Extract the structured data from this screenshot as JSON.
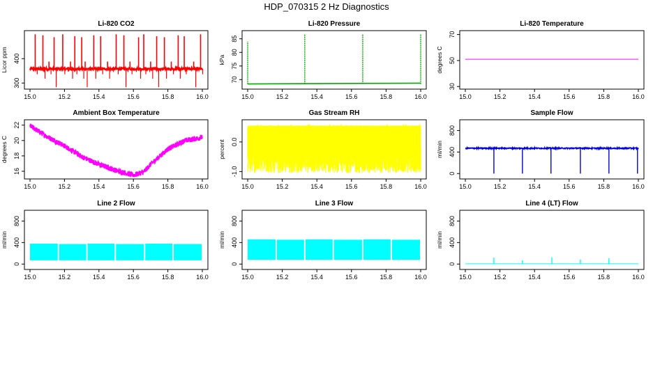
{
  "page_title": "HDP_070315  2 Hz Diagnostics",
  "chart_data": [
    {
      "type": "line",
      "title": "Li-820 CO2",
      "ylabel": "Licor ppm",
      "color": "#ff0000",
      "xlim": [
        15.0,
        16.0
      ],
      "ylim": [
        275,
        515
      ],
      "xticks": [
        "15.0",
        "15.2",
        "15.4",
        "15.6",
        "15.8",
        "16.0"
      ],
      "yticks": [
        {
          "v": 300,
          "label": "300"
        },
        {
          "v": 400,
          "label": "400"
        }
      ],
      "series": {
        "pattern": "co2",
        "baseline": 358,
        "spike_high": 500,
        "spikes_x": [
          15.03,
          15.075,
          15.11,
          15.14,
          15.19,
          15.235,
          15.26,
          15.3,
          15.32,
          15.37,
          15.41,
          15.45,
          15.5,
          15.545,
          15.58,
          15.63,
          15.66,
          15.7,
          15.735,
          15.78,
          15.82,
          15.86,
          15.895,
          15.95,
          15.99
        ]
      }
    },
    {
      "type": "line",
      "title": "Li-820 Pressure",
      "ylabel": "kPa",
      "color": "#00aa00",
      "xlim": [
        15.0,
        16.0
      ],
      "ylim": [
        66.5,
        88.0
      ],
      "xticks": [
        "15.0",
        "15.2",
        "15.4",
        "15.6",
        "15.8",
        "16.0"
      ],
      "yticks": [
        {
          "v": 70,
          "label": "70"
        },
        {
          "v": 75,
          "label": "75"
        },
        {
          "v": 80,
          "label": "80"
        },
        {
          "v": 85,
          "label": "85"
        }
      ],
      "series": {
        "pattern": "pressure",
        "baseline": 68.4,
        "spike_high": 86.8,
        "spikes_x": [
          15.0,
          15.33,
          15.665,
          16.0
        ]
      }
    },
    {
      "type": "line",
      "title": "Li-820 Temperature",
      "ylabel": "degrees C",
      "color": "#ff00ff",
      "xlim": [
        15.0,
        16.0
      ],
      "ylim": [
        28,
        73
      ],
      "xticks": [
        "15.0",
        "15.2",
        "15.4",
        "15.6",
        "15.8",
        "16.0"
      ],
      "yticks": [
        {
          "v": 30,
          "label": "30"
        },
        {
          "v": 50,
          "label": "50"
        },
        {
          "v": 70,
          "label": "70"
        }
      ],
      "series": {
        "pattern": "flat",
        "value": 51
      }
    },
    {
      "type": "line",
      "title": "Ambient Box Temperature",
      "ylabel": "degrees C",
      "color": "#ff00ff",
      "xlim": [
        15.0,
        16.0
      ],
      "ylim": [
        15.0,
        22.7
      ],
      "xticks": [
        "15.0",
        "15.2",
        "15.4",
        "15.6",
        "15.8",
        "16.0"
      ],
      "yticks": [
        {
          "v": 16,
          "label": "16"
        },
        {
          "v": 18,
          "label": "18"
        },
        {
          "v": 20,
          "label": "20"
        },
        {
          "v": 22,
          "label": "22"
        }
      ],
      "series": {
        "pattern": "temp_curve",
        "x": [
          15.0,
          15.1,
          15.2,
          15.3,
          15.4,
          15.5,
          15.6,
          15.66,
          15.7,
          15.8,
          15.9,
          16.0
        ],
        "y": [
          21.9,
          20.5,
          19.3,
          17.9,
          16.9,
          16.1,
          15.5,
          15.9,
          16.9,
          18.9,
          20.0,
          20.4
        ]
      }
    },
    {
      "type": "line",
      "title": "Gas Stream RH",
      "ylabel": "percent",
      "color": "#ffff00",
      "xlim": [
        15.0,
        16.0
      ],
      "ylim": [
        -1.25,
        0.75
      ],
      "xticks": [
        "15.0",
        "15.2",
        "15.4",
        "15.6",
        "15.8",
        "16.0"
      ],
      "yticks": [
        {
          "v": -1.0,
          "label": "-1.0"
        },
        {
          "v": 0.0,
          "label": "0.0"
        }
      ],
      "series": {
        "pattern": "noise",
        "low": -1.05,
        "high": 0.6
      }
    },
    {
      "type": "line",
      "title": "Sample Flow",
      "ylabel": "ml/min",
      "color": "#0000dd",
      "xlim": [
        15.0,
        16.0
      ],
      "ylim": [
        -100,
        1000
      ],
      "xticks": [
        "15.0",
        "15.2",
        "15.4",
        "15.6",
        "15.8",
        "16.0"
      ],
      "yticks": [
        {
          "v": 0,
          "label": "0"
        },
        {
          "v": 400,
          "label": "400"
        },
        {
          "v": 800,
          "label": "800"
        }
      ],
      "series": {
        "pattern": "dips",
        "baseline": 470,
        "dip_low": 0,
        "dips_x": [
          15.165,
          15.33,
          15.495,
          15.665,
          15.83,
          15.995
        ]
      }
    },
    {
      "type": "line",
      "title": "Line 2 Flow",
      "ylabel": "ml/min",
      "color": "#00ffff",
      "xlim": [
        15.0,
        16.0
      ],
      "ylim": [
        -100,
        1000
      ],
      "xticks": [
        "15.0",
        "15.2",
        "15.4",
        "15.6",
        "15.8",
        "16.0"
      ],
      "yticks": [
        {
          "v": 0,
          "label": "0"
        },
        {
          "v": 400,
          "label": "400"
        },
        {
          "v": 800,
          "label": "800"
        }
      ],
      "series": {
        "pattern": "band",
        "low": 70,
        "high": 380,
        "gaps_x": [
          15.165,
          15.33,
          15.495,
          15.665,
          15.83
        ]
      }
    },
    {
      "type": "line",
      "title": "Line 3 Flow",
      "ylabel": "ml/min",
      "color": "#00ffff",
      "xlim": [
        15.0,
        16.0
      ],
      "ylim": [
        -100,
        1000
      ],
      "xticks": [
        "15.0",
        "15.2",
        "15.4",
        "15.6",
        "15.8",
        "16.0"
      ],
      "yticks": [
        {
          "v": 0,
          "label": "0"
        },
        {
          "v": 400,
          "label": "400"
        },
        {
          "v": 800,
          "label": "800"
        }
      ],
      "series": {
        "pattern": "band",
        "low": 80,
        "high": 460,
        "gaps_x": [
          15.165,
          15.33,
          15.495,
          15.665,
          15.83
        ]
      }
    },
    {
      "type": "line",
      "title": "Line 4 (LT) Flow",
      "ylabel": "ml/min",
      "color": "#00ffff",
      "xlim": [
        15.0,
        16.0
      ],
      "ylim": [
        -100,
        1000
      ],
      "xticks": [
        "15.0",
        "15.2",
        "15.4",
        "15.6",
        "15.8",
        "16.0"
      ],
      "yticks": [
        {
          "v": 0,
          "label": "0"
        },
        {
          "v": 400,
          "label": "400"
        },
        {
          "v": 800,
          "label": "800"
        }
      ],
      "series": {
        "pattern": "spikes_small",
        "baseline": 5,
        "spikes": [
          {
            "x": 15.165,
            "y": 120
          },
          {
            "x": 15.33,
            "y": 70
          },
          {
            "x": 15.5,
            "y": 125
          },
          {
            "x": 15.665,
            "y": 85
          },
          {
            "x": 15.83,
            "y": 110
          }
        ]
      }
    }
  ]
}
